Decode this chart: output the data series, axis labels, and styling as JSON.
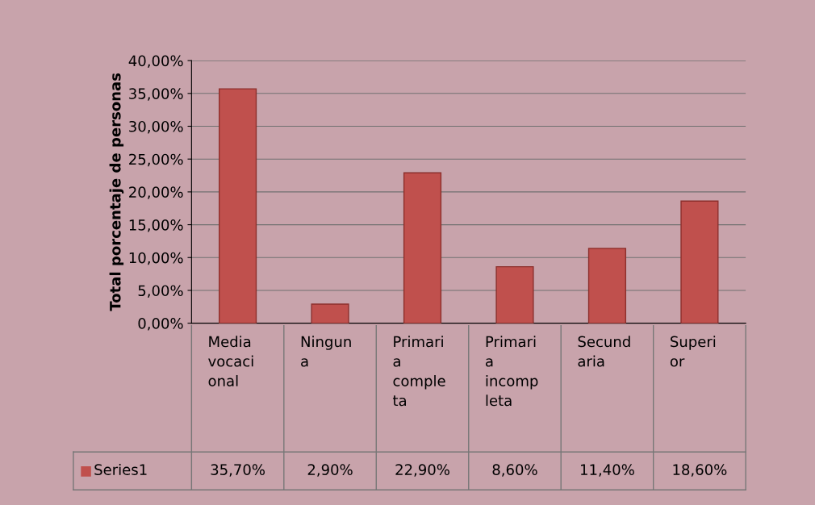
{
  "chart_data": {
    "type": "bar",
    "ylabel": "Total porcentaje de personas",
    "categories": [
      "Media\nvocaci\nonal",
      "Ningun\na",
      "Primari\na\ncomple\nta",
      "Primari\na\nincomp\nleta",
      "Secund\naria",
      "Superi\nor"
    ],
    "series": [
      {
        "name": "Series1",
        "color": "#c0504d",
        "values": [
          35.7,
          2.9,
          22.9,
          8.6,
          11.4,
          18.6
        ],
        "value_labels": [
          "35,70%",
          "2,90%",
          "22,90%",
          "8,60%",
          "11,40%",
          "18,60%"
        ]
      }
    ],
    "ylim": [
      0,
      40
    ],
    "yticks": [
      {
        "value": 0,
        "label": "0,00%"
      },
      {
        "value": 5,
        "label": "5,00%"
      },
      {
        "value": 10,
        "label": "10,00%"
      },
      {
        "value": 15,
        "label": "15,00%"
      },
      {
        "value": 20,
        "label": "20,00%"
      },
      {
        "value": 25,
        "label": "25,00%"
      },
      {
        "value": 30,
        "label": "30,00%"
      },
      {
        "value": 35,
        "label": "35,00%"
      },
      {
        "value": 40,
        "label": "40,00%"
      }
    ],
    "grid": "y",
    "legend": "bottom"
  }
}
